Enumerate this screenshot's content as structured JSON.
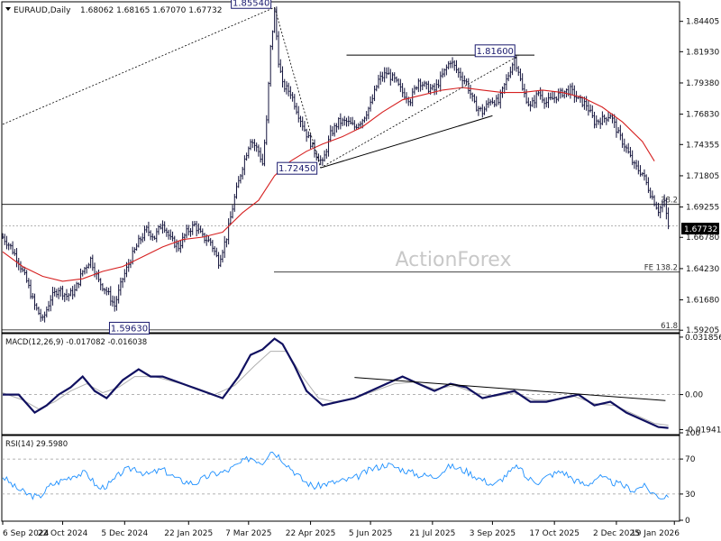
{
  "chart_data": {
    "type": "candlestick",
    "title": "EURAUD,Daily",
    "ohlc_text": "1.68062 1.68165 1.67070 1.67732",
    "current_price": "1.67732",
    "watermark": "ActionForex",
    "x_ticks": [
      "6 Sep 2024",
      "22 Oct 2024",
      "5 Dec 2024",
      "22 Jan 2025",
      "7 Mar 2025",
      "22 Apr 2025",
      "5 Jun 2025",
      "21 Jul 2025",
      "3 Sep 2025",
      "17 Oct 2025",
      "2 Dec 2025",
      "19 Jan 2026"
    ],
    "price_ticks": [
      "1.84405",
      "1.81930",
      "1.79380",
      "1.76830",
      "1.74355",
      "1.71805",
      "1.69255",
      "1.66780",
      "1.64230",
      "1.61680",
      "1.59205"
    ],
    "price_range": [
      1.59,
      1.86
    ],
    "close_path": [
      [
        0,
        1.668
      ],
      [
        4,
        1.66
      ],
      [
        8,
        1.648
      ],
      [
        12,
        1.632
      ],
      [
        16,
        1.612
      ],
      [
        20,
        1.6
      ],
      [
        24,
        1.618
      ],
      [
        28,
        1.626
      ],
      [
        32,
        1.62
      ],
      [
        36,
        1.624
      ],
      [
        40,
        1.64
      ],
      [
        44,
        1.65
      ],
      [
        48,
        1.632
      ],
      [
        52,
        1.624
      ],
      [
        56,
        1.612
      ],
      [
        60,
        1.634
      ],
      [
        64,
        1.65
      ],
      [
        68,
        1.664
      ],
      [
        72,
        1.674
      ],
      [
        76,
        1.668
      ],
      [
        80,
        1.68
      ],
      [
        84,
        1.666
      ],
      [
        88,
        1.66
      ],
      [
        92,
        1.672
      ],
      [
        96,
        1.678
      ],
      [
        100,
        1.668
      ],
      [
        104,
        1.664
      ],
      [
        108,
        1.648
      ],
      [
        112,
        1.668
      ],
      [
        116,
        1.7
      ],
      [
        120,
        1.726
      ],
      [
        124,
        1.748
      ],
      [
        128,
        1.738
      ],
      [
        130,
        1.728
      ],
      [
        132,
        1.762
      ],
      [
        134,
        1.822
      ],
      [
        136,
        1.852
      ],
      [
        138,
        1.812
      ],
      [
        140,
        1.792
      ],
      [
        144,
        1.786
      ],
      [
        148,
        1.768
      ],
      [
        152,
        1.752
      ],
      [
        156,
        1.738
      ],
      [
        160,
        1.728
      ],
      [
        164,
        1.752
      ],
      [
        168,
        1.762
      ],
      [
        172,
        1.762
      ],
      [
        176,
        1.758
      ],
      [
        180,
        1.764
      ],
      [
        184,
        1.776
      ],
      [
        188,
        1.796
      ],
      [
        192,
        1.802
      ],
      [
        196,
        1.796
      ],
      [
        200,
        1.786
      ],
      [
        204,
        1.78
      ],
      [
        208,
        1.796
      ],
      [
        212,
        1.79
      ],
      [
        216,
        1.788
      ],
      [
        220,
        1.8
      ],
      [
        224,
        1.812
      ],
      [
        228,
        1.802
      ],
      [
        232,
        1.794
      ],
      [
        236,
        1.776
      ],
      [
        240,
        1.77
      ],
      [
        244,
        1.78
      ],
      [
        248,
        1.778
      ],
      [
        252,
        1.796
      ],
      [
        256,
        1.814
      ],
      [
        258,
        1.804
      ],
      [
        260,
        1.788
      ],
      [
        264,
        1.774
      ],
      [
        268,
        1.786
      ],
      [
        272,
        1.778
      ],
      [
        276,
        1.782
      ],
      [
        280,
        1.786
      ],
      [
        284,
        1.788
      ],
      [
        288,
        1.78
      ],
      [
        292,
        1.776
      ],
      [
        296,
        1.762
      ],
      [
        300,
        1.764
      ],
      [
        304,
        1.768
      ],
      [
        308,
        1.752
      ],
      [
        312,
        1.74
      ],
      [
        316,
        1.726
      ],
      [
        320,
        1.72
      ],
      [
        324,
        1.704
      ],
      [
        328,
        1.69
      ],
      [
        331,
        1.696
      ],
      [
        333,
        1.677
      ]
    ],
    "ma_path": [
      [
        0,
        1.656
      ],
      [
        10,
        1.644
      ],
      [
        20,
        1.636
      ],
      [
        30,
        1.632
      ],
      [
        40,
        1.634
      ],
      [
        50,
        1.64
      ],
      [
        60,
        1.644
      ],
      [
        70,
        1.652
      ],
      [
        80,
        1.66
      ],
      [
        90,
        1.666
      ],
      [
        100,
        1.668
      ],
      [
        110,
        1.672
      ],
      [
        120,
        1.688
      ],
      [
        128,
        1.698
      ],
      [
        136,
        1.718
      ],
      [
        144,
        1.73
      ],
      [
        152,
        1.738
      ],
      [
        160,
        1.744
      ],
      [
        170,
        1.75
      ],
      [
        180,
        1.758
      ],
      [
        190,
        1.77
      ],
      [
        200,
        1.78
      ],
      [
        210,
        1.784
      ],
      [
        220,
        1.788
      ],
      [
        230,
        1.79
      ],
      [
        240,
        1.788
      ],
      [
        250,
        1.786
      ],
      [
        260,
        1.786
      ],
      [
        270,
        1.788
      ],
      [
        280,
        1.786
      ],
      [
        290,
        1.782
      ],
      [
        300,
        1.774
      ],
      [
        310,
        1.762
      ],
      [
        320,
        1.746
      ],
      [
        326,
        1.73
      ]
    ],
    "horizontal_levels": [
      {
        "price": 1.6947,
        "label": "38.2"
      },
      {
        "price": 1.6395,
        "label": "FE 138.2"
      },
      {
        "price": 1.5923,
        "label": "61.8"
      }
    ],
    "annotations": [
      {
        "text": "1.85540",
        "bar": 136,
        "price": 1.8554
      },
      {
        "text": "1.81600",
        "bar": 258,
        "price": 1.816
      },
      {
        "text": "1.72450",
        "bar": 159,
        "price": 1.7245
      },
      {
        "text": "1.59630",
        "bar": 48,
        "price": 1.5963
      }
    ],
    "trendlines": [
      {
        "x1": 0,
        "y1": 1.76,
        "x2": 136,
        "y2": 1.8554,
        "style": "dotted"
      },
      {
        "x1": 136,
        "y1": 1.8554,
        "x2": 159,
        "y2": 1.7245,
        "style": "dotted"
      },
      {
        "x1": 159,
        "y1": 1.7245,
        "x2": 258,
        "y2": 1.816,
        "style": "dotted"
      },
      {
        "x1": 159,
        "y1": 1.7245,
        "x2": 245,
        "y2": 1.767,
        "style": "solid"
      },
      {
        "x1": 172,
        "y1": 1.8165,
        "x2": 266,
        "y2": 1.8165,
        "style": "solid"
      }
    ],
    "macd": {
      "label": "MACD(12,26,9) -0.017082 -0.016038",
      "ticks": [
        "0.031856",
        "0.00",
        "-0.019412"
      ],
      "range": [
        -0.0222,
        0.0338
      ],
      "line_path": [
        [
          0,
          0.0
        ],
        [
          8,
          0.0
        ],
        [
          16,
          -0.01
        ],
        [
          22,
          -0.006
        ],
        [
          28,
          0.0
        ],
        [
          34,
          0.004
        ],
        [
          40,
          0.01
        ],
        [
          46,
          0.002
        ],
        [
          52,
          -0.002
        ],
        [
          60,
          0.008
        ],
        [
          68,
          0.014
        ],
        [
          74,
          0.01
        ],
        [
          80,
          0.01
        ],
        [
          90,
          0.006
        ],
        [
          100,
          0.002
        ],
        [
          110,
          -0.002
        ],
        [
          118,
          0.01
        ],
        [
          124,
          0.022
        ],
        [
          130,
          0.025
        ],
        [
          136,
          0.031
        ],
        [
          140,
          0.028
        ],
        [
          146,
          0.016
        ],
        [
          152,
          0.002
        ],
        [
          160,
          -0.006
        ],
        [
          168,
          -0.004
        ],
        [
          176,
          -0.002
        ],
        [
          184,
          0.002
        ],
        [
          192,
          0.006
        ],
        [
          200,
          0.01
        ],
        [
          208,
          0.006
        ],
        [
          216,
          0.002
        ],
        [
          224,
          0.006
        ],
        [
          232,
          0.004
        ],
        [
          240,
          -0.002
        ],
        [
          248,
          0.0
        ],
        [
          256,
          0.002
        ],
        [
          264,
          -0.004
        ],
        [
          272,
          -0.004
        ],
        [
          280,
          -0.002
        ],
        [
          288,
          0.0
        ],
        [
          296,
          -0.006
        ],
        [
          304,
          -0.004
        ],
        [
          312,
          -0.01
        ],
        [
          320,
          -0.014
        ],
        [
          328,
          -0.018
        ],
        [
          333,
          -0.0185
        ]
      ],
      "signal_path": [
        [
          0,
          0.001
        ],
        [
          10,
          -0.003
        ],
        [
          18,
          -0.008
        ],
        [
          26,
          -0.004
        ],
        [
          34,
          0.002
        ],
        [
          42,
          0.006
        ],
        [
          50,
          0.001
        ],
        [
          58,
          0.004
        ],
        [
          66,
          0.01
        ],
        [
          76,
          0.01
        ],
        [
          86,
          0.007
        ],
        [
          96,
          0.004
        ],
        [
          106,
          0.0
        ],
        [
          116,
          0.005
        ],
        [
          126,
          0.016
        ],
        [
          134,
          0.024
        ],
        [
          142,
          0.024
        ],
        [
          150,
          0.01
        ],
        [
          158,
          -0.002
        ],
        [
          166,
          -0.004
        ],
        [
          176,
          -0.002
        ],
        [
          186,
          0.002
        ],
        [
          196,
          0.006
        ],
        [
          206,
          0.007
        ],
        [
          216,
          0.003
        ],
        [
          226,
          0.005
        ],
        [
          236,
          0.001
        ],
        [
          246,
          -0.001
        ],
        [
          256,
          0.001
        ],
        [
          266,
          -0.003
        ],
        [
          276,
          -0.003
        ],
        [
          286,
          -0.001
        ],
        [
          296,
          -0.005
        ],
        [
          306,
          -0.006
        ],
        [
          316,
          -0.011
        ],
        [
          326,
          -0.016
        ],
        [
          333,
          -0.017
        ]
      ],
      "trendline": {
        "x1": 176,
        "y1": 0.0095,
        "x2": 300,
        "y2": -0.0013
      }
    },
    "rsi": {
      "label": "RSI(14) 29.5980",
      "ticks": [
        "100",
        "70",
        "30",
        "0"
      ],
      "levels": [
        70,
        30
      ],
      "path": [
        [
          0,
          50
        ],
        [
          6,
          38
        ],
        [
          12,
          30
        ],
        [
          18,
          26
        ],
        [
          24,
          40
        ],
        [
          30,
          46
        ],
        [
          36,
          52
        ],
        [
          42,
          54
        ],
        [
          48,
          36
        ],
        [
          54,
          42
        ],
        [
          60,
          56
        ],
        [
          66,
          60
        ],
        [
          72,
          52
        ],
        [
          80,
          58
        ],
        [
          88,
          46
        ],
        [
          96,
          42
        ],
        [
          104,
          52
        ],
        [
          112,
          56
        ],
        [
          118,
          64
        ],
        [
          124,
          72
        ],
        [
          130,
          66
        ],
        [
          134,
          80
        ],
        [
          138,
          74
        ],
        [
          144,
          60
        ],
        [
          150,
          46
        ],
        [
          156,
          38
        ],
        [
          162,
          42
        ],
        [
          168,
          44
        ],
        [
          176,
          48
        ],
        [
          184,
          58
        ],
        [
          192,
          64
        ],
        [
          200,
          58
        ],
        [
          208,
          52
        ],
        [
          216,
          50
        ],
        [
          224,
          62
        ],
        [
          232,
          56
        ],
        [
          240,
          46
        ],
        [
          246,
          40
        ],
        [
          252,
          52
        ],
        [
          258,
          62
        ],
        [
          262,
          48
        ],
        [
          268,
          44
        ],
        [
          274,
          52
        ],
        [
          280,
          56
        ],
        [
          286,
          46
        ],
        [
          292,
          40
        ],
        [
          298,
          50
        ],
        [
          304,
          44
        ],
        [
          310,
          40
        ],
        [
          316,
          34
        ],
        [
          320,
          40
        ],
        [
          326,
          30
        ],
        [
          330,
          26
        ],
        [
          333,
          29.6
        ]
      ]
    }
  }
}
